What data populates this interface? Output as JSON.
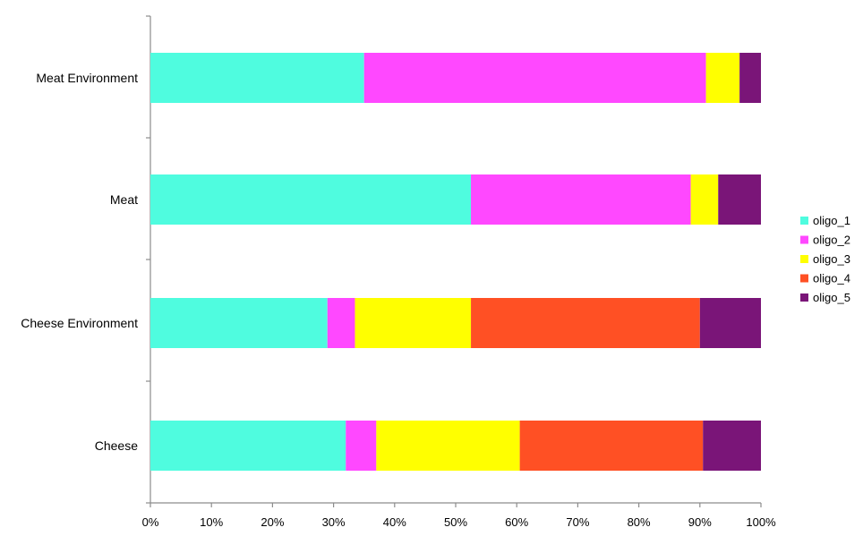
{
  "chart_data": {
    "type": "bar",
    "orientation": "horizontal",
    "stacked": "percent",
    "categories": [
      "Meat Environment",
      "Meat",
      "Cheese Environment",
      "Cheese"
    ],
    "series": [
      {
        "name": "oligo_1",
        "color": "#4ffcdf",
        "values": [
          35.0,
          52.5,
          29.0,
          32.0
        ]
      },
      {
        "name": "oligo_2",
        "color": "#ff48ff",
        "values": [
          56.0,
          36.0,
          4.5,
          5.0
        ]
      },
      {
        "name": "oligo_3",
        "color": "#ffff00",
        "values": [
          5.5,
          4.5,
          19.0,
          23.5
        ]
      },
      {
        "name": "oligo_4",
        "color": "#ff5024",
        "values": [
          0.0,
          0.0,
          37.5,
          30.0
        ]
      },
      {
        "name": "oligo_5",
        "color": "#7a1578",
        "values": [
          3.5,
          7.0,
          10.0,
          9.5
        ]
      }
    ],
    "x_ticks": [
      "0%",
      "10%",
      "20%",
      "30%",
      "40%",
      "50%",
      "60%",
      "70%",
      "80%",
      "90%",
      "100%"
    ],
    "xlim": [
      0,
      100
    ],
    "grid": false,
    "legend": "right",
    "title": "",
    "xlabel": "",
    "ylabel": ""
  }
}
